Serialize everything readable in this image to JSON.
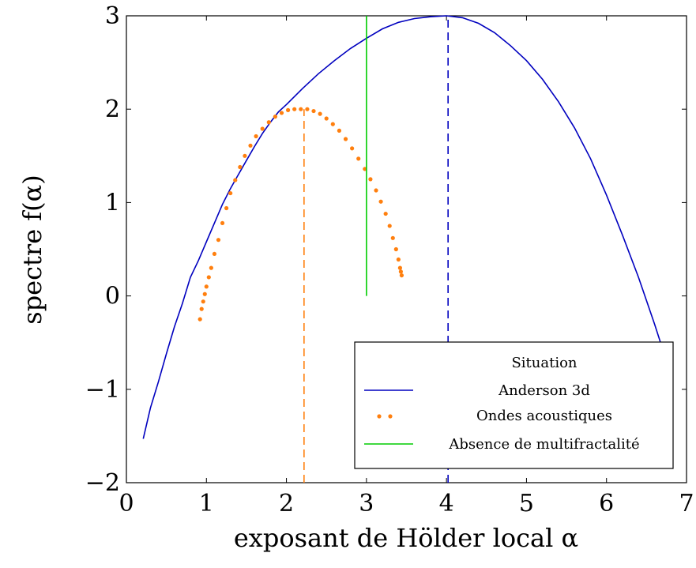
{
  "chart_data": {
    "type": "line",
    "xlabel": "exposant de Hölder local α",
    "ylabel": "spectre f(α)",
    "xlim": [
      0,
      7
    ],
    "ylim": [
      -2,
      3
    ],
    "xticks": [
      "0",
      "1",
      "2",
      "3",
      "4",
      "5",
      "6",
      "7"
    ],
    "yticks": [
      "−2",
      "−1",
      "0",
      "1",
      "2",
      "3"
    ],
    "grid": false,
    "legend": {
      "title": "Situation",
      "placement": "bottom-right"
    },
    "series": [
      {
        "name": "Anderson 3d",
        "style": "line",
        "color": "#0000bf",
        "x": [
          0.21,
          0.3,
          0.4,
          0.5,
          0.6,
          0.7,
          0.8,
          0.9,
          1.0,
          1.1,
          1.2,
          1.3,
          1.4,
          1.5,
          1.6,
          1.7,
          1.8,
          1.9,
          2.0,
          2.2,
          2.4,
          2.6,
          2.8,
          3.0,
          3.2,
          3.4,
          3.6,
          3.8,
          4.0,
          4.2,
          4.4,
          4.6,
          4.8,
          5.0,
          5.2,
          5.4,
          5.6,
          5.8,
          6.0,
          6.2,
          6.4,
          6.6,
          6.75,
          6.83
        ],
        "y": [
          -1.53,
          -1.2,
          -0.92,
          -0.62,
          -0.33,
          -0.08,
          0.2,
          0.38,
          0.58,
          0.78,
          0.98,
          1.15,
          1.3,
          1.45,
          1.6,
          1.74,
          1.86,
          1.97,
          2.05,
          2.22,
          2.38,
          2.52,
          2.65,
          2.76,
          2.86,
          2.93,
          2.97,
          2.99,
          3.0,
          2.98,
          2.92,
          2.82,
          2.68,
          2.52,
          2.32,
          2.08,
          1.8,
          1.47,
          1.08,
          0.65,
          0.2,
          -0.3,
          -0.7,
          -0.9
        ]
      },
      {
        "name": "Ondes acoustiques",
        "style": "dots",
        "color": "#ff7f0e",
        "x": [
          0.92,
          0.94,
          0.96,
          0.98,
          1.0,
          1.03,
          1.06,
          1.1,
          1.15,
          1.2,
          1.25,
          1.3,
          1.36,
          1.42,
          1.48,
          1.55,
          1.62,
          1.7,
          1.78,
          1.86,
          1.94,
          2.02,
          2.1,
          2.18,
          2.26,
          2.34,
          2.42,
          2.5,
          2.58,
          2.66,
          2.74,
          2.82,
          2.9,
          2.98,
          3.05,
          3.12,
          3.18,
          3.24,
          3.29,
          3.33,
          3.37,
          3.4,
          3.42,
          3.43,
          3.44
        ],
        "y": [
          -0.25,
          -0.14,
          -0.06,
          0.02,
          0.1,
          0.2,
          0.3,
          0.45,
          0.6,
          0.78,
          0.94,
          1.1,
          1.24,
          1.38,
          1.5,
          1.61,
          1.71,
          1.79,
          1.86,
          1.92,
          1.96,
          1.99,
          2.0,
          2.0,
          2.0,
          1.98,
          1.95,
          1.9,
          1.84,
          1.77,
          1.68,
          1.58,
          1.47,
          1.36,
          1.25,
          1.13,
          1.01,
          0.88,
          0.75,
          0.62,
          0.5,
          0.39,
          0.3,
          0.26,
          0.22
        ]
      },
      {
        "name": "Absence de multifractalité",
        "style": "line",
        "color": "#00cc00",
        "x": [
          3.0,
          3.0
        ],
        "y": [
          0.0,
          3.0
        ]
      }
    ],
    "dashed_lines": [
      {
        "color": "#ff7f0e",
        "x": 2.22,
        "y": [
          -2,
          2
        ]
      },
      {
        "color": "#0000bf",
        "x": 4.02,
        "y": [
          -2,
          3
        ]
      }
    ]
  }
}
